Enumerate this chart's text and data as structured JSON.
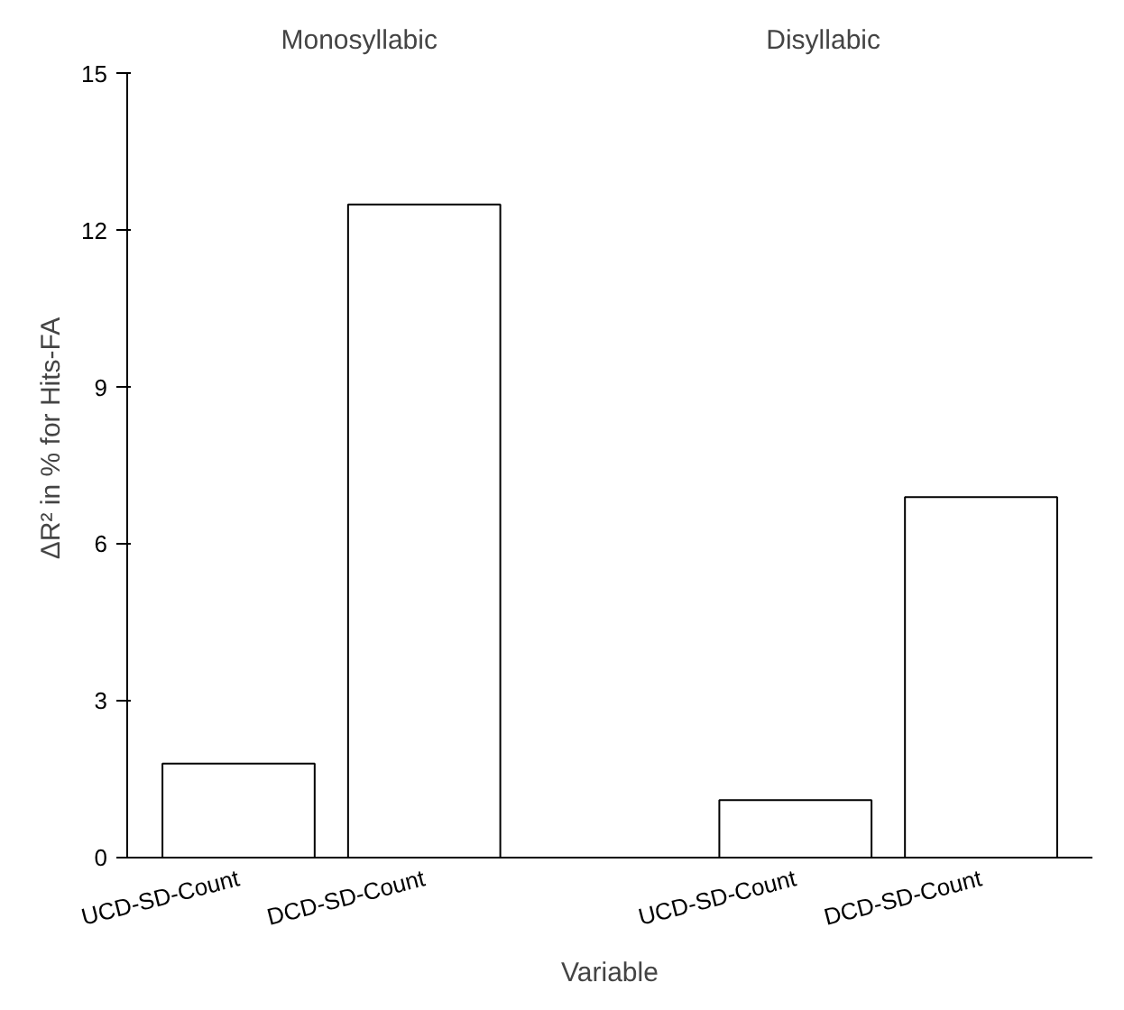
{
  "chart_data": {
    "type": "bar",
    "xlabel": "Variable",
    "ylabel": "ΔR² in % for Hits-FA",
    "categories": [
      "UCD-SD-Count",
      "DCD-SD-Count",
      null,
      "UCD-SD-Count",
      "DCD-SD-Count"
    ],
    "values": [
      1.8,
      12.5,
      null,
      1.1,
      6.9
    ],
    "color": "#ffffff",
    "ylim": [
      0,
      15
    ],
    "yticks": [
      0,
      3,
      6,
      9,
      12,
      15
    ],
    "grid": false,
    "annotations": [
      "Monosyllabic",
      "Disyllabic"
    ]
  }
}
